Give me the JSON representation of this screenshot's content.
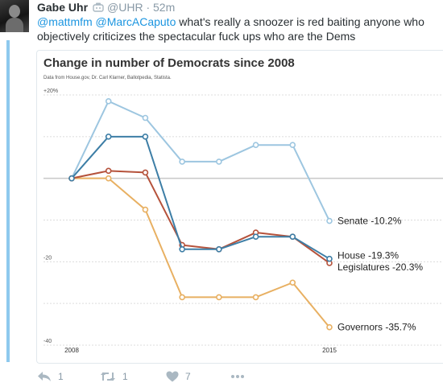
{
  "tweet": {
    "author_name": "Gabe Uhr",
    "author_handle": "@UHR",
    "separator": "·",
    "time": "52m",
    "mention_1": "@mattmfm",
    "mention_2": "@MarcACaputo",
    "body": "what's really a snoozer is red baiting anyone who objectively criticizes the spectacular fuck ups who are the Dems",
    "icons": [
      "avatar",
      "bot-icon",
      "reply-icon",
      "retweet-icon",
      "like-icon",
      "more-icon"
    ]
  },
  "actions": {
    "reply_count": "1",
    "retweet_count": "1",
    "like_count": "7"
  },
  "chart_data": {
    "type": "line",
    "title": "Change in number of Democrats since 2008",
    "subtitle": "Data from House.gov, Dr. Carl Klarner, Ballotpedia, Statista.",
    "xlabel": "",
    "ylabel": "",
    "x": [
      2008,
      2009,
      2010,
      2011,
      2012,
      2013,
      2014,
      2015
    ],
    "x_tick_labels": [
      "2008",
      "2015"
    ],
    "y_ticks": [
      20,
      0,
      -20,
      -40
    ],
    "y_tick_labels": [
      "+20%",
      "",
      "-20",
      "-40"
    ],
    "ylim": [
      -40,
      20
    ],
    "grid": true,
    "legend": "end-of-line labels",
    "series": [
      {
        "name": "Senate",
        "end_label": "Senate -10.2%",
        "color": "#9dc6e0",
        "values": [
          0,
          18.5,
          14.5,
          4,
          4,
          8,
          8,
          -10.2
        ]
      },
      {
        "name": "House",
        "end_label": "House -19.3%",
        "color": "#3d7ea6",
        "values": [
          0,
          10,
          10,
          -17,
          -17,
          -14,
          -14,
          -19.3
        ]
      },
      {
        "name": "Legislatures",
        "end_label": "Legislatures -20.3%",
        "color": "#b5523b",
        "values": [
          0,
          1.8,
          1.4,
          -16,
          -17,
          -13,
          -14,
          -20.3
        ]
      },
      {
        "name": "Governors",
        "end_label": "Governors -35.7%",
        "color": "#e8b062",
        "values": [
          0,
          0,
          -7.5,
          -28.5,
          -28.5,
          -28.5,
          -25,
          -35.7
        ]
      }
    ]
  }
}
